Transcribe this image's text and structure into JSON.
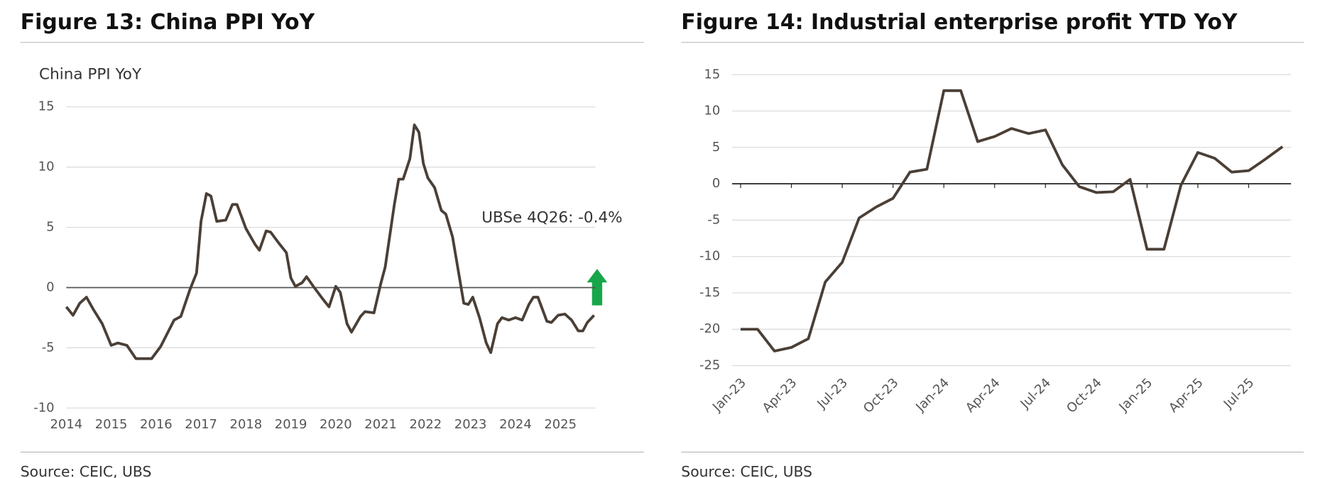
{
  "chart_data": [
    {
      "type": "line",
      "title": "Figure 13: China PPI YoY",
      "subtitle": "China PPI YoY",
      "source": "Source: CEIC, UBS",
      "annotation": "UBSe 4Q26: -0.4%",
      "x": [
        2014.0,
        2014.15,
        2014.3,
        2014.45,
        2014.6,
        2014.8,
        2015.0,
        2015.15,
        2015.35,
        2015.55,
        2015.9,
        2016.1,
        2016.4,
        2016.55,
        2016.75,
        2016.9,
        2017.0,
        2017.12,
        2017.22,
        2017.35,
        2017.55,
        2017.7,
        2017.8,
        2018.0,
        2018.2,
        2018.3,
        2018.45,
        2018.55,
        2018.75,
        2018.9,
        2019.0,
        2019.1,
        2019.25,
        2019.35,
        2019.5,
        2019.7,
        2019.85,
        2020.0,
        2020.1,
        2020.25,
        2020.35,
        2020.55,
        2020.65,
        2020.85,
        2021.0,
        2021.1,
        2021.3,
        2021.4,
        2021.5,
        2021.65,
        2021.75,
        2021.85,
        2021.95,
        2022.05,
        2022.2,
        2022.35,
        2022.45,
        2022.6,
        2022.75,
        2022.85,
        2022.95,
        2023.05,
        2023.2,
        2023.35,
        2023.45,
        2023.6,
        2023.7,
        2023.85,
        2024.0,
        2024.15,
        2024.3,
        2024.4,
        2024.5,
        2024.6,
        2024.7,
        2024.8,
        2024.95,
        2025.1,
        2025.25,
        2025.4,
        2025.5,
        2025.6,
        2025.75
      ],
      "series": [
        {
          "color": "#4a3f36",
          "values": [
            -1.6,
            -2.3,
            -1.3,
            -0.8,
            -1.8,
            -3.0,
            -4.8,
            -4.6,
            -4.8,
            -5.9,
            -5.9,
            -4.9,
            -2.7,
            -2.4,
            -0.2,
            1.2,
            5.5,
            7.8,
            7.6,
            5.5,
            5.6,
            6.9,
            6.9,
            4.9,
            3.6,
            3.1,
            4.7,
            4.6,
            3.6,
            2.9,
            0.8,
            0.1,
            0.4,
            0.9,
            0.1,
            -0.9,
            -1.6,
            0.1,
            -0.4,
            -3.0,
            -3.7,
            -2.4,
            -2.0,
            -2.1,
            0.3,
            1.7,
            6.8,
            9.0,
            9.0,
            10.7,
            13.5,
            12.9,
            10.3,
            9.1,
            8.3,
            6.4,
            6.1,
            4.2,
            0.9,
            -1.3,
            -1.4,
            -0.8,
            -2.5,
            -4.6,
            -5.4,
            -3.0,
            -2.5,
            -2.7,
            -2.5,
            -2.7,
            -1.4,
            -0.8,
            -0.8,
            -1.8,
            -2.8,
            -2.9,
            -2.3,
            -2.2,
            -2.7,
            -3.6,
            -3.6,
            -2.9,
            -2.3
          ]
        }
      ],
      "xlim": [
        2014,
        2025.78
      ],
      "xticks": [
        2014,
        2015,
        2016,
        2017,
        2018,
        2019,
        2020,
        2021,
        2022,
        2023,
        2024,
        2025
      ],
      "ylim": [
        -10,
        15
      ],
      "yticks": [
        -10,
        -5,
        0,
        5,
        10,
        15
      ],
      "grid": true
    },
    {
      "type": "line",
      "title": "Figure 14: Industrial enterprise profit YTD YoY",
      "source": "Source: CEIC, UBS",
      "categories": [
        "Jan-23",
        null,
        null,
        "Apr-23",
        null,
        null,
        "Jul-23",
        null,
        null,
        "Oct-23",
        null,
        null,
        "Jan-24",
        null,
        null,
        "Apr-24",
        null,
        null,
        "Jul-24",
        null,
        null,
        "Oct-24",
        null,
        null,
        "Jan-25",
        null,
        null,
        "Apr-25",
        null,
        null,
        "Jul-25",
        null,
        null
      ],
      "series": [
        {
          "color": "#4a3f36",
          "values": [
            -20.0,
            -20.0,
            -23.0,
            -22.5,
            -21.3,
            -13.5,
            -10.8,
            -4.7,
            -3.2,
            -2.0,
            1.6,
            2.0,
            12.8,
            12.8,
            5.8,
            6.5,
            7.6,
            6.9,
            7.4,
            2.6,
            -0.4,
            -1.2,
            -1.1,
            0.6,
            -9.0,
            -9.0,
            -0.2,
            4.3,
            3.5,
            1.6,
            1.8,
            3.4,
            5.1
          ]
        }
      ],
      "ylim": [
        -25,
        15
      ],
      "yticks": [
        -25,
        -20,
        -15,
        -10,
        -5,
        0,
        5,
        10,
        15
      ],
      "grid": true
    }
  ]
}
